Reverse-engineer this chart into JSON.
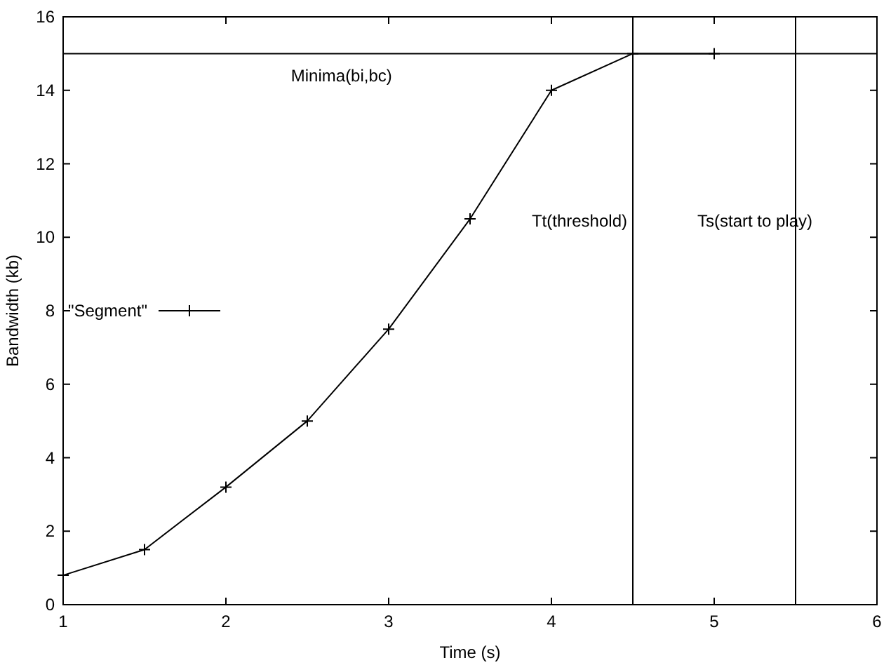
{
  "chart_data": {
    "type": "line",
    "xlabel": "Time (s)",
    "ylabel": "Bandwidth (kb)",
    "x": [
      1,
      1.5,
      2,
      2.5,
      3,
      3.5,
      4,
      4.5,
      5
    ],
    "series": [
      {
        "name": "\"Segment\"",
        "color": "#000000",
        "values": [
          0.8,
          1.5,
          3.2,
          5,
          7.5,
          10.5,
          14,
          15,
          15
        ]
      }
    ],
    "xlim": [
      1,
      6
    ],
    "ylim": [
      0,
      16
    ],
    "xticks": [
      1,
      2,
      3,
      4,
      5,
      6
    ],
    "yticks": [
      0,
      2,
      4,
      6,
      8,
      10,
      12,
      14,
      16
    ],
    "grid": false,
    "legend": "left",
    "marker": "cross",
    "line_style": "solid",
    "ref_lines": [
      {
        "axis": "y",
        "value": 15,
        "label": "Minima(bi,bc)"
      },
      {
        "axis": "x",
        "value": 4.5,
        "label": "Tt(threshold)"
      },
      {
        "axis": "x",
        "value": 5.5,
        "label": "Ts(start to play)"
      }
    ]
  }
}
